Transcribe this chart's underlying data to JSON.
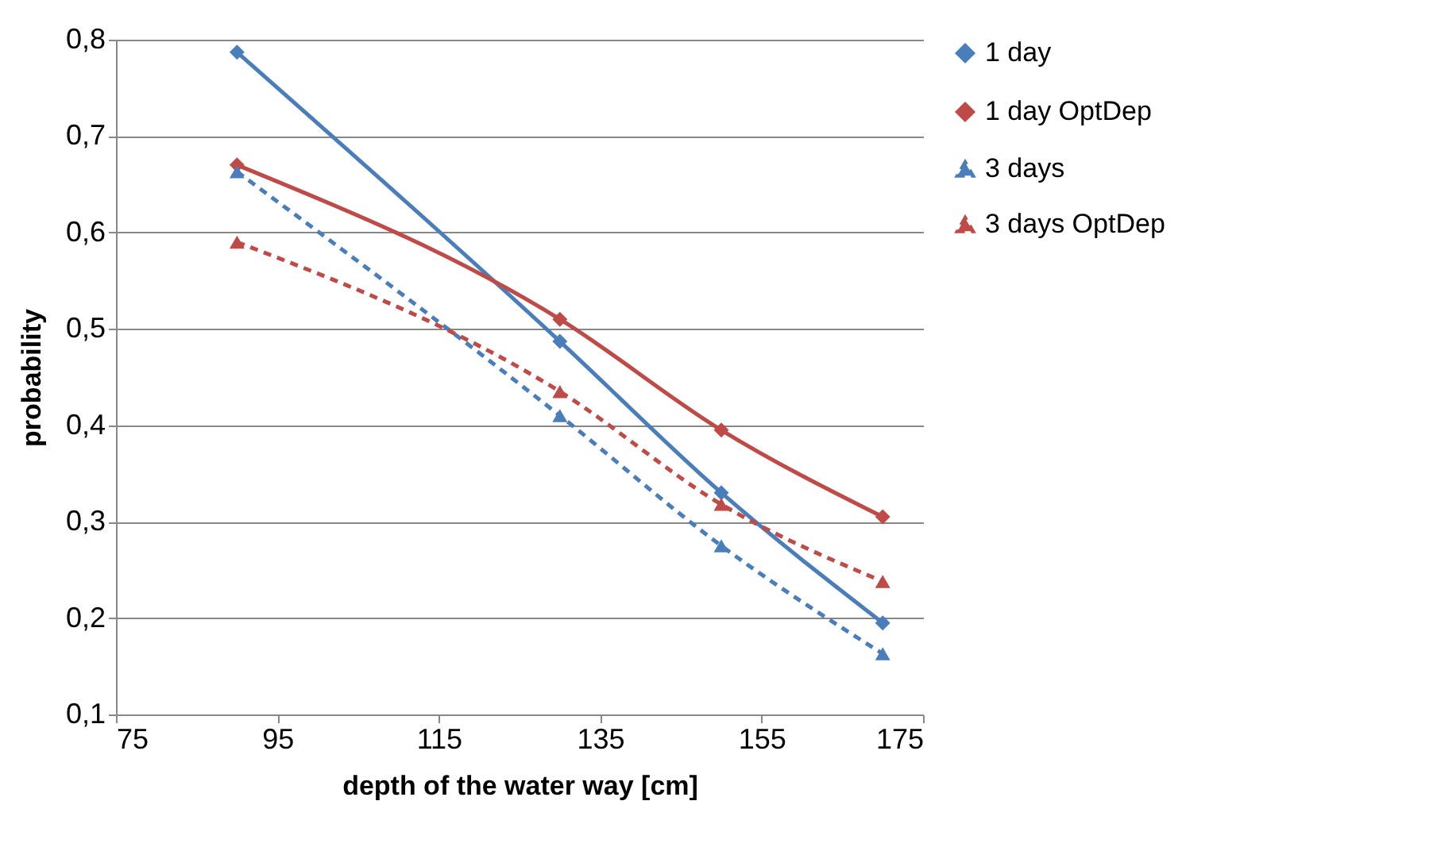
{
  "chart_data": {
    "type": "line",
    "xlabel": "depth of the water way [cm]",
    "ylabel": "probability",
    "x": [
      90,
      130,
      150,
      170
    ],
    "series": [
      {
        "name": "1 day",
        "color": "#4a7ebb",
        "marker": "diamond",
        "line_style": "solid",
        "values": [
          0.787,
          0.487,
          0.33,
          0.195
        ]
      },
      {
        "name": "1 day OptDep",
        "color": "#be4b48",
        "marker": "diamond",
        "line_style": "solid",
        "values": [
          0.67,
          0.51,
          0.395,
          0.305
        ]
      },
      {
        "name": "3 days",
        "color": "#4a7ebb",
        "marker": "triangle",
        "line_style": "dashed",
        "values": [
          0.663,
          0.41,
          0.275,
          0.163
        ]
      },
      {
        "name": "3 days OptDep",
        "color": "#be4b48",
        "marker": "triangle",
        "line_style": "dashed",
        "values": [
          0.59,
          0.435,
          0.318,
          0.238
        ]
      }
    ],
    "xlim": [
      75,
      175
    ],
    "xticks": [
      75,
      95,
      115,
      135,
      155,
      175
    ],
    "ylim": [
      0.1,
      0.8
    ],
    "yticks": [
      {
        "value": 0.1,
        "label": "0,1"
      },
      {
        "value": 0.2,
        "label": "0,2"
      },
      {
        "value": 0.3,
        "label": "0,3"
      },
      {
        "value": 0.4,
        "label": "0,4"
      },
      {
        "value": 0.5,
        "label": "0,5"
      },
      {
        "value": 0.6,
        "label": "0,6"
      },
      {
        "value": 0.7,
        "label": "0,7"
      },
      {
        "value": 0.8,
        "label": "0,8"
      }
    ],
    "grid": "y",
    "legend": "right"
  }
}
